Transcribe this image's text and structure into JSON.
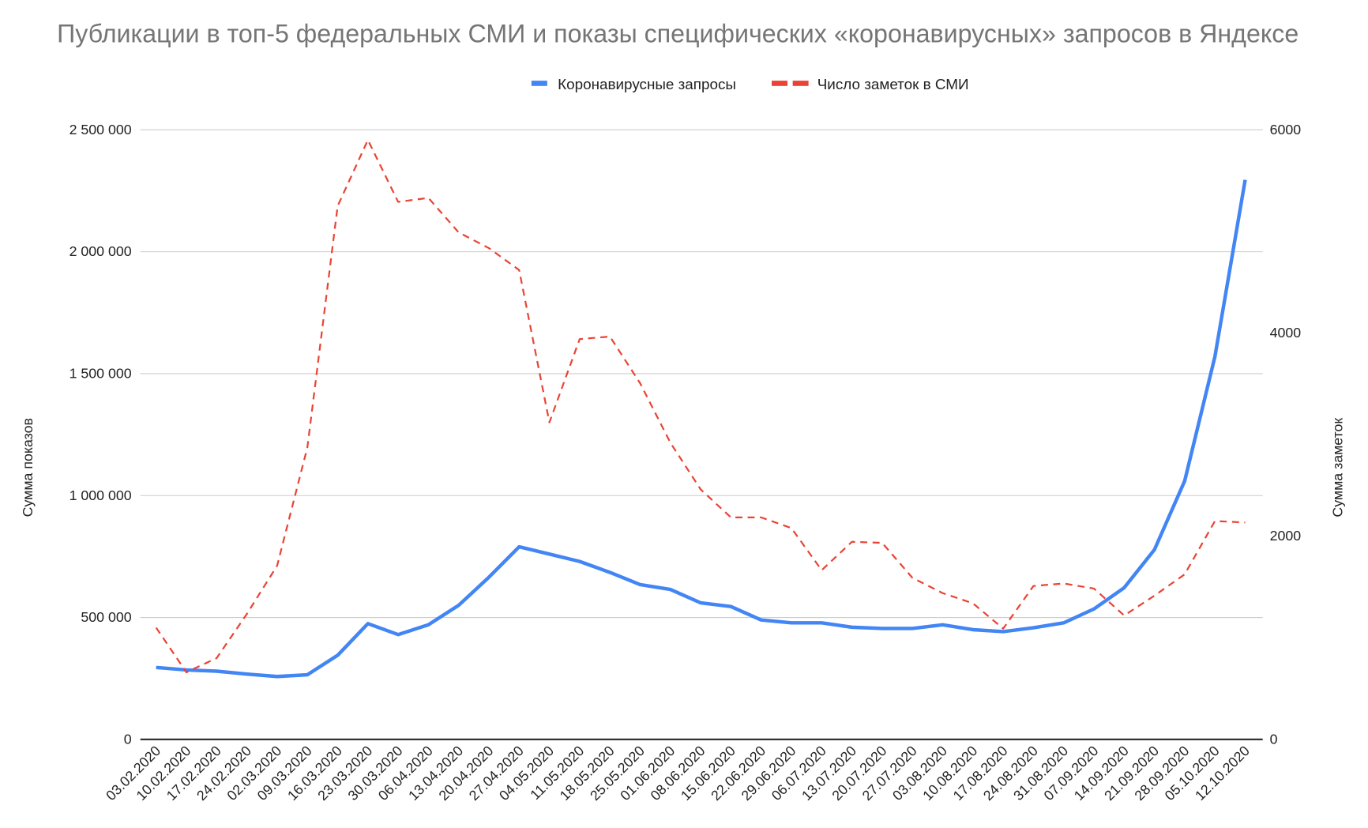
{
  "chart_data": {
    "type": "line",
    "title": "Публикации в топ-5 федеральных СМИ и показы специфических «коронавирусных» запросов в Яндексе",
    "legend_position": "top",
    "grid": true,
    "x": [
      "03.02.2020",
      "10.02.2020",
      "17.02.2020",
      "24.02.2020",
      "02.03.2020",
      "09.03.2020",
      "16.03.2020",
      "23.03.2020",
      "30.03.2020",
      "06.04.2020",
      "13.04.2020",
      "20.04.2020",
      "27.04.2020",
      "04.05.2020",
      "11.05.2020",
      "18.05.2020",
      "25.05.2020",
      "01.06.2020",
      "08.06.2020",
      "15.06.2020",
      "22.06.2020",
      "29.06.2020",
      "06.07.2020",
      "13.07.2020",
      "20.07.2020",
      "27.07.2020",
      "03.08.2020",
      "10.08.2020",
      "17.08.2020",
      "24.08.2020",
      "31.08.2020",
      "07.09.2020",
      "14.09.2020",
      "21.09.2020",
      "28.09.2020",
      "05.10.2020",
      "12.10.2020"
    ],
    "left_axis": {
      "label": "Сумма показов",
      "range": [
        0,
        2500000
      ],
      "ticks": [
        "0",
        "500 000",
        "1 000 000",
        "1 500 000",
        "2 000 000",
        "2 500 000"
      ],
      "tick_values": [
        0,
        500000,
        1000000,
        1500000,
        2000000,
        2500000
      ]
    },
    "right_axis": {
      "label": "Сумма заметок",
      "range": [
        0,
        6000
      ],
      "ticks": [
        "0",
        "2000",
        "4000",
        "6000"
      ],
      "tick_values": [
        0,
        2000,
        4000,
        6000
      ]
    },
    "series": [
      {
        "name": "Коронавирусные запросы",
        "axis": "left",
        "color": "#4285f4",
        "style": "solid",
        "values": [
          295000,
          285000,
          280000,
          268000,
          258000,
          265000,
          345000,
          475000,
          430000,
          470000,
          550000,
          665000,
          790000,
          760000,
          730000,
          685000,
          635000,
          615000,
          560000,
          545000,
          490000,
          478000,
          478000,
          460000,
          455000,
          455000,
          470000,
          450000,
          442000,
          458000,
          478000,
          535000,
          622000,
          778000,
          1060000,
          1570000,
          2295000
        ]
      },
      {
        "name": "Число заметок в СМИ",
        "axis": "right",
        "color": "#ea4335",
        "style": "dashed",
        "values": [
          1100,
          660,
          800,
          1235,
          1710,
          2875,
          5250,
          5900,
          5290,
          5330,
          4990,
          4835,
          4620,
          3120,
          3940,
          3965,
          3505,
          2920,
          2460,
          2185,
          2185,
          2080,
          1665,
          1945,
          1935,
          1590,
          1440,
          1340,
          1090,
          1510,
          1535,
          1485,
          1220,
          1415,
          1625,
          2150,
          2135
        ]
      }
    ]
  }
}
